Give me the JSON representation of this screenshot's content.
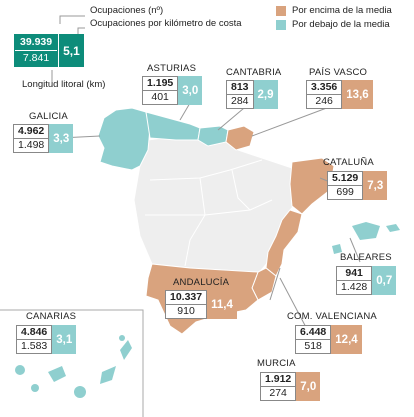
{
  "legend": {
    "occupancy": "Ocupaciones (nº)",
    "per_km": "Ocupaciones por kilómetro de costa",
    "length": "Longitud litoral (km)",
    "above": "Por encima de la media",
    "below": "Por debajo de la media",
    "example": {
      "occupancy": "39.939",
      "length": "7.841",
      "ratio": "5,1"
    }
  },
  "colors": {
    "above": "#d9a37e",
    "below": "#8fcfcf",
    "example": "#0d8c7a",
    "land": "#eeeeee",
    "border": "#ffffff"
  },
  "regions": [
    {
      "id": "galicia",
      "name": "GALICIA",
      "occupancy": "4.962",
      "length": "1.498",
      "ratio": "3,3",
      "status": "below"
    },
    {
      "id": "asturias",
      "name": "ASTURIAS",
      "occupancy": "1.195",
      "length": "401",
      "ratio": "3,0",
      "status": "below"
    },
    {
      "id": "cantabria",
      "name": "CANTABRIA",
      "occupancy": "813",
      "length": "284",
      "ratio": "2,9",
      "status": "below"
    },
    {
      "id": "pais-vasco",
      "name": "PAÍS VASCO",
      "occupancy": "3.356",
      "length": "246",
      "ratio": "13,6",
      "status": "above"
    },
    {
      "id": "cataluna",
      "name": "CATALUÑA",
      "occupancy": "5.129",
      "length": "699",
      "ratio": "7,3",
      "status": "above"
    },
    {
      "id": "baleares",
      "name": "BALEARES",
      "occupancy": "941",
      "length": "1.428",
      "ratio": "0,7",
      "status": "below"
    },
    {
      "id": "andalucia",
      "name": "ANDALUCÍA",
      "occupancy": "10.337",
      "length": "910",
      "ratio": "11,4",
      "status": "above"
    },
    {
      "id": "com-valenciana",
      "name": "COM. VALENCIANA",
      "occupancy": "6.448",
      "length": "518",
      "ratio": "12,4",
      "status": "above"
    },
    {
      "id": "murcia",
      "name": "MURCIA",
      "occupancy": "1.912",
      "length": "274",
      "ratio": "7,0",
      "status": "above"
    },
    {
      "id": "canarias",
      "name": "CANARIAS",
      "occupancy": "4.846",
      "length": "1.583",
      "ratio": "3,1",
      "status": "below"
    }
  ]
}
